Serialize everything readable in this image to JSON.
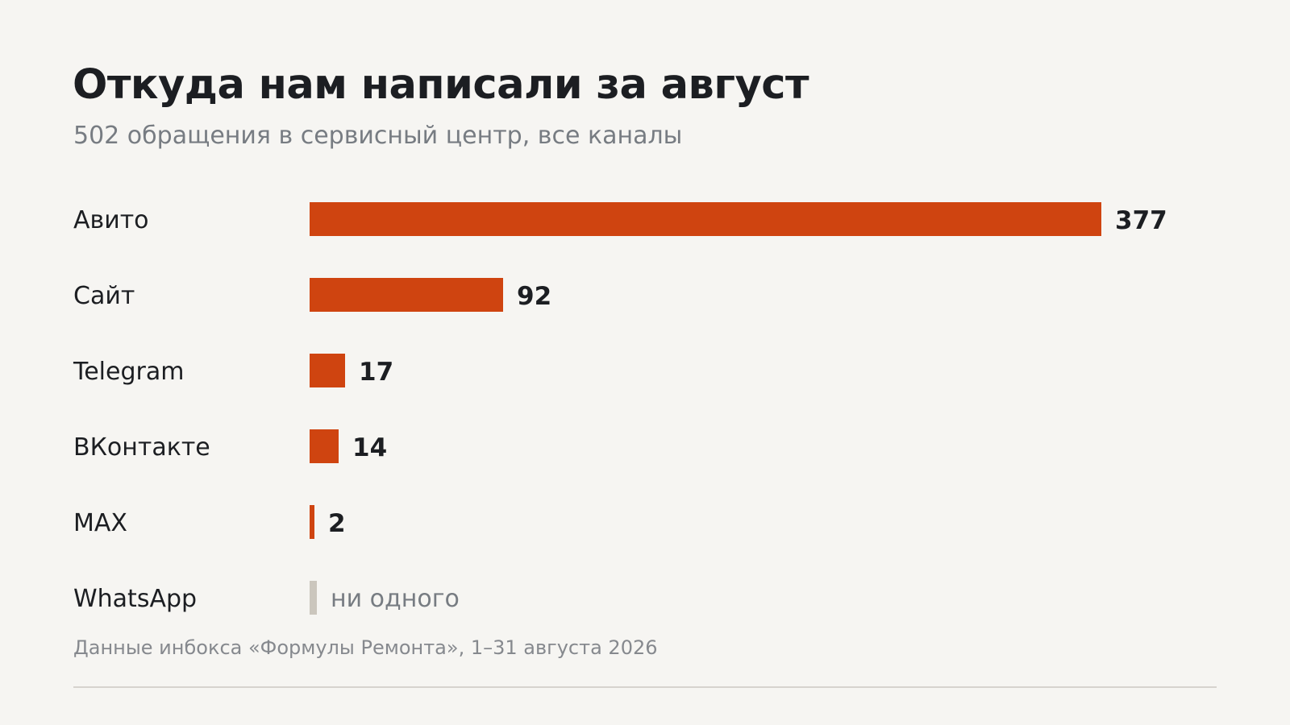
{
  "chart_data": {
    "type": "bar",
    "orientation": "horizontal",
    "title": "Откуда нам написали за август",
    "subtitle": "502 обращения в сервисный центр, все каналы",
    "categories": [
      "Авито",
      "Сайт",
      "Telegram",
      "ВКонтакте",
      "MAX",
      "WhatsApp"
    ],
    "values": [
      377,
      92,
      17,
      14,
      2,
      0
    ],
    "value_labels": [
      "377",
      "92",
      "17",
      "14",
      "2",
      "ни одного"
    ],
    "source": "Данные инбокса «Формулы Ремонта», 1–31 августа 2026",
    "xlim": [
      0,
      377
    ],
    "grid": false,
    "legend": "none",
    "colors": {
      "bar": "#cf4410",
      "zero_bar": "#cbc6bd",
      "background": "#f6f5f2",
      "text": "#1c1e22",
      "muted_text": "#777c82"
    }
  }
}
